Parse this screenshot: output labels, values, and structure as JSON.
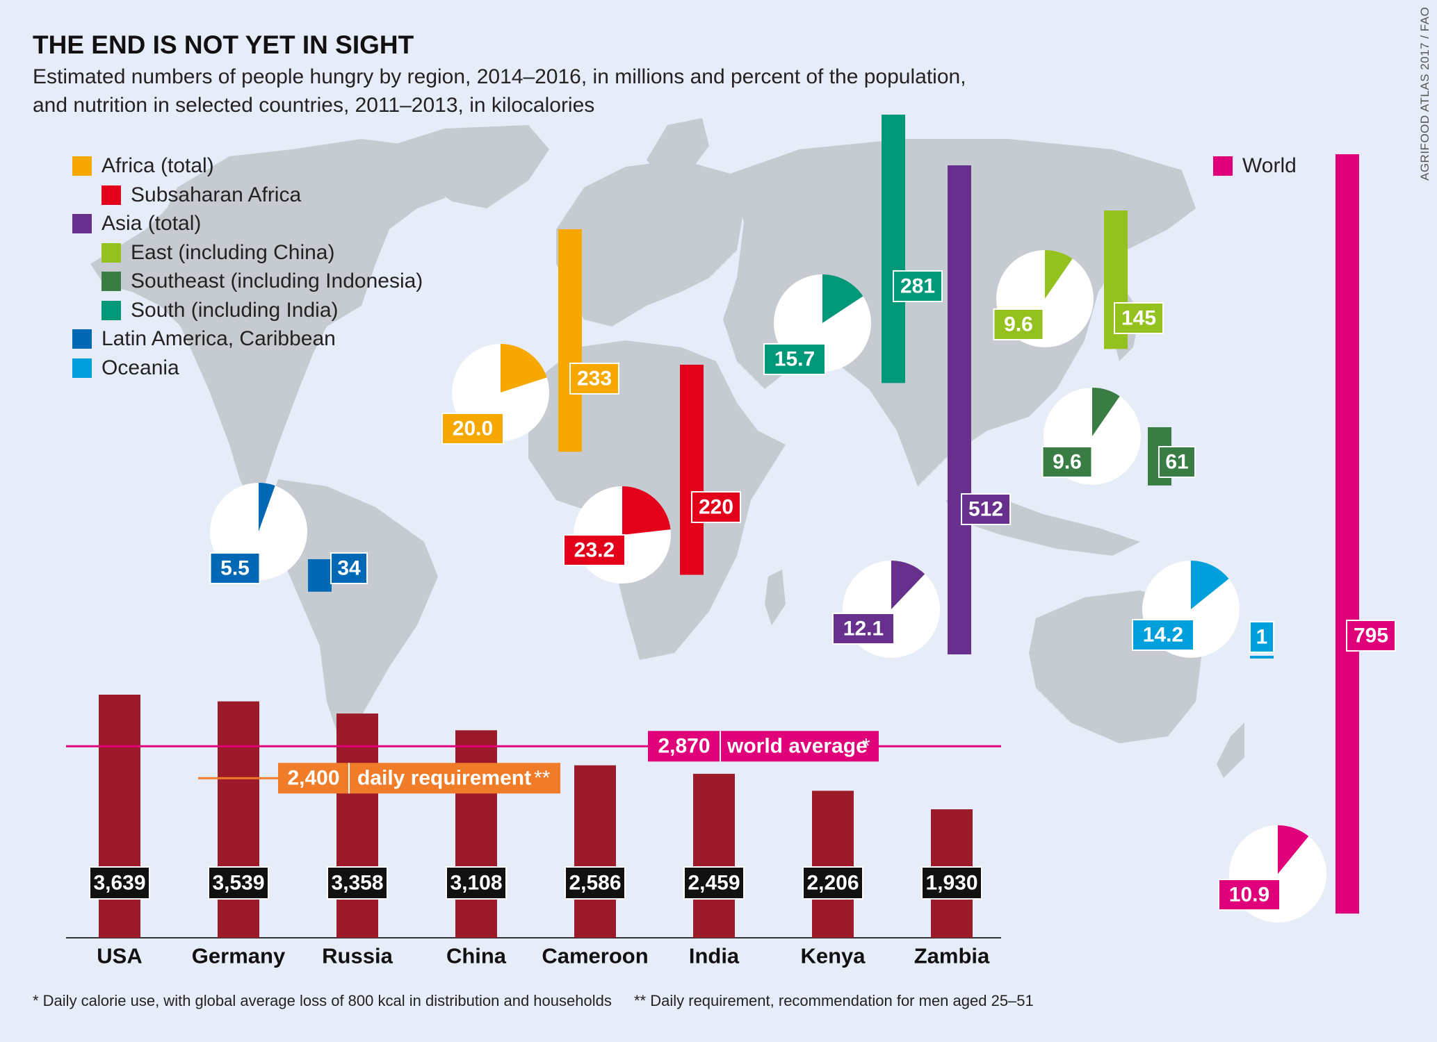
{
  "title": "THE END IS NOT YET IN SIGHT",
  "subtitle_line1": "Estimated numbers of people hungry by region, 2014–2016, in millions and percent of the population,",
  "subtitle_line2": "and nutrition in selected countries, 2011–2013, in kilocalories",
  "credit": "AGRIFOOD ATLAS 2017 / FAO",
  "footnote1": "* Daily calorie use, with global average loss of 800 kcal in distribution and households",
  "footnote2": "** Daily requirement, recommendation for men aged 25–51",
  "legend": [
    {
      "label": "Africa (total)",
      "color": "#f6a800",
      "indent": false
    },
    {
      "label": "Subsaharan Africa",
      "color": "#e2001a",
      "indent": true
    },
    {
      "label": "Asia (total)",
      "color": "#66308c",
      "indent": false
    },
    {
      "label": "East (including China)",
      "color": "#95c11f",
      "indent": true
    },
    {
      "label": "Southeast (including Indonesia)",
      "color": "#3a7d44",
      "indent": true
    },
    {
      "label": "South (including India)",
      "color": "#009879",
      "indent": true
    },
    {
      "label": "Latin America, Caribbean",
      "color": "#0068b4",
      "indent": false
    },
    {
      "label": "Oceania",
      "color": "#00a0dc",
      "indent": false
    }
  ],
  "world_legend": {
    "label": "World",
    "color": "#e0007a"
  },
  "chart_data": [
    {
      "type": "bar",
      "title": "Estimated numbers of people hungry by region, 2014–2016",
      "unit_values": "millions",
      "unit_percent": "percent of the population",
      "ylim": [
        0,
        800
      ],
      "regions": [
        {
          "name": "Africa (total)",
          "color": "#f6a800",
          "value": 233,
          "value_label": "233",
          "percent": 20.0,
          "percent_label": "20.0"
        },
        {
          "name": "Subsaharan Africa",
          "color": "#e2001a",
          "value": 220,
          "value_label": "220",
          "percent": 23.2,
          "percent_label": "23.2"
        },
        {
          "name": "Asia (total)",
          "color": "#66308c",
          "value": 512,
          "value_label": "512",
          "percent": 12.1,
          "percent_label": "12.1"
        },
        {
          "name": "East (including China)",
          "color": "#95c11f",
          "value": 145,
          "value_label": "145",
          "percent": 9.6,
          "percent_label": "9.6"
        },
        {
          "name": "Southeast (including Indonesia)",
          "color": "#3a7d44",
          "value": 61,
          "value_label": "61",
          "percent": 9.6,
          "percent_label": "9.6"
        },
        {
          "name": "South (including India)",
          "color": "#009879",
          "value": 281,
          "value_label": "281",
          "percent": 15.7,
          "percent_label": "15.7"
        },
        {
          "name": "Latin America, Caribbean",
          "color": "#0068b4",
          "value": 34,
          "value_label": "34",
          "percent": 5.5,
          "percent_label": "5.5"
        },
        {
          "name": "Oceania",
          "color": "#00a0dc",
          "value": 1,
          "value_label": "1",
          "percent": 14.2,
          "percent_label": "14.2"
        },
        {
          "name": "World",
          "color": "#e0007a",
          "value": 795,
          "value_label": "795",
          "percent": 10.9,
          "percent_label": "10.9"
        }
      ]
    },
    {
      "type": "bar",
      "title": "Nutrition in selected countries, 2011–2013, in kilocalories",
      "categories": [
        "USA",
        "Germany",
        "Russia",
        "China",
        "Cameroon",
        "India",
        "Kenya",
        "Zambia"
      ],
      "values": [
        3639,
        3539,
        3358,
        3108,
        2586,
        2459,
        2206,
        1930
      ],
      "value_labels": [
        "3,639",
        "3,539",
        "3,358",
        "3,108",
        "2,586",
        "2,459",
        "2,206",
        "1,930"
      ],
      "bar_color": "#9c1b2b",
      "world_average": {
        "value": 2870,
        "value_label": "2,870",
        "label": "world average",
        "marker": "*",
        "color": "#e0007a"
      },
      "daily_requirement": {
        "value": 2400,
        "value_label": "2,400",
        "label": "daily requirement",
        "marker": "**",
        "color": "#f07c2a"
      }
    }
  ]
}
